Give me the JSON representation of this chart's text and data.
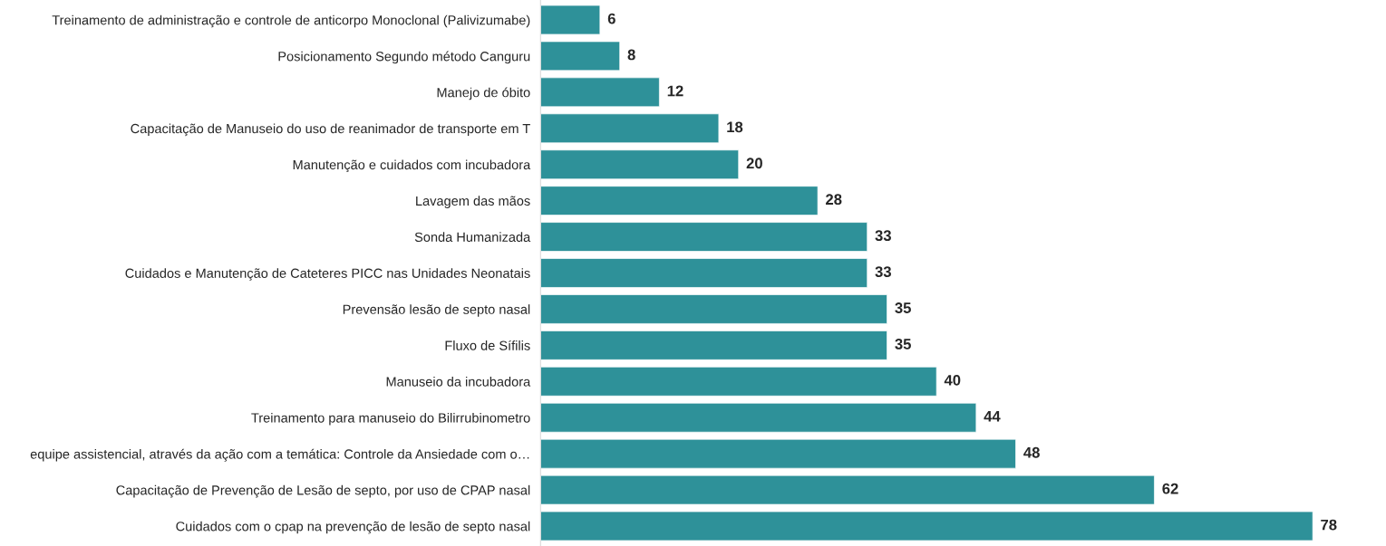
{
  "chart_data": {
    "type": "bar",
    "orientation": "horizontal",
    "data_labels": true,
    "color": "#2e9199",
    "categories": [
      "Treinamento de administração e controle de anticorpo Monoclonal (Palivizumabe)",
      "Posicionamento Segundo método Canguru",
      "Manejo de óbito",
      "Capacitação de Manuseio do uso de reanimador de transporte em T",
      "Manutenção e cuidados com incubadora",
      "Lavagem das mãos",
      "Sonda Humanizada",
      "Cuidados e Manutenção de Cateteres PICC nas Unidades Neonatais",
      "Prevensão lesão de septo nasal",
      "Fluxo de Sífilis",
      "Manuseio da incubadora",
      "Treinamento para manuseio do Bilirrubinometro",
      "equipe assistencial, através da ação com a temática: Controle da Ansiedade com o…",
      "Capacitação de Prevenção de Lesão de septo, por uso de CPAP nasal",
      "Cuidados com o cpap na prevenção de lesão de septo nasal"
    ],
    "values": [
      6,
      8,
      12,
      18,
      20,
      28,
      33,
      33,
      35,
      35,
      40,
      44,
      48,
      62,
      78
    ]
  }
}
